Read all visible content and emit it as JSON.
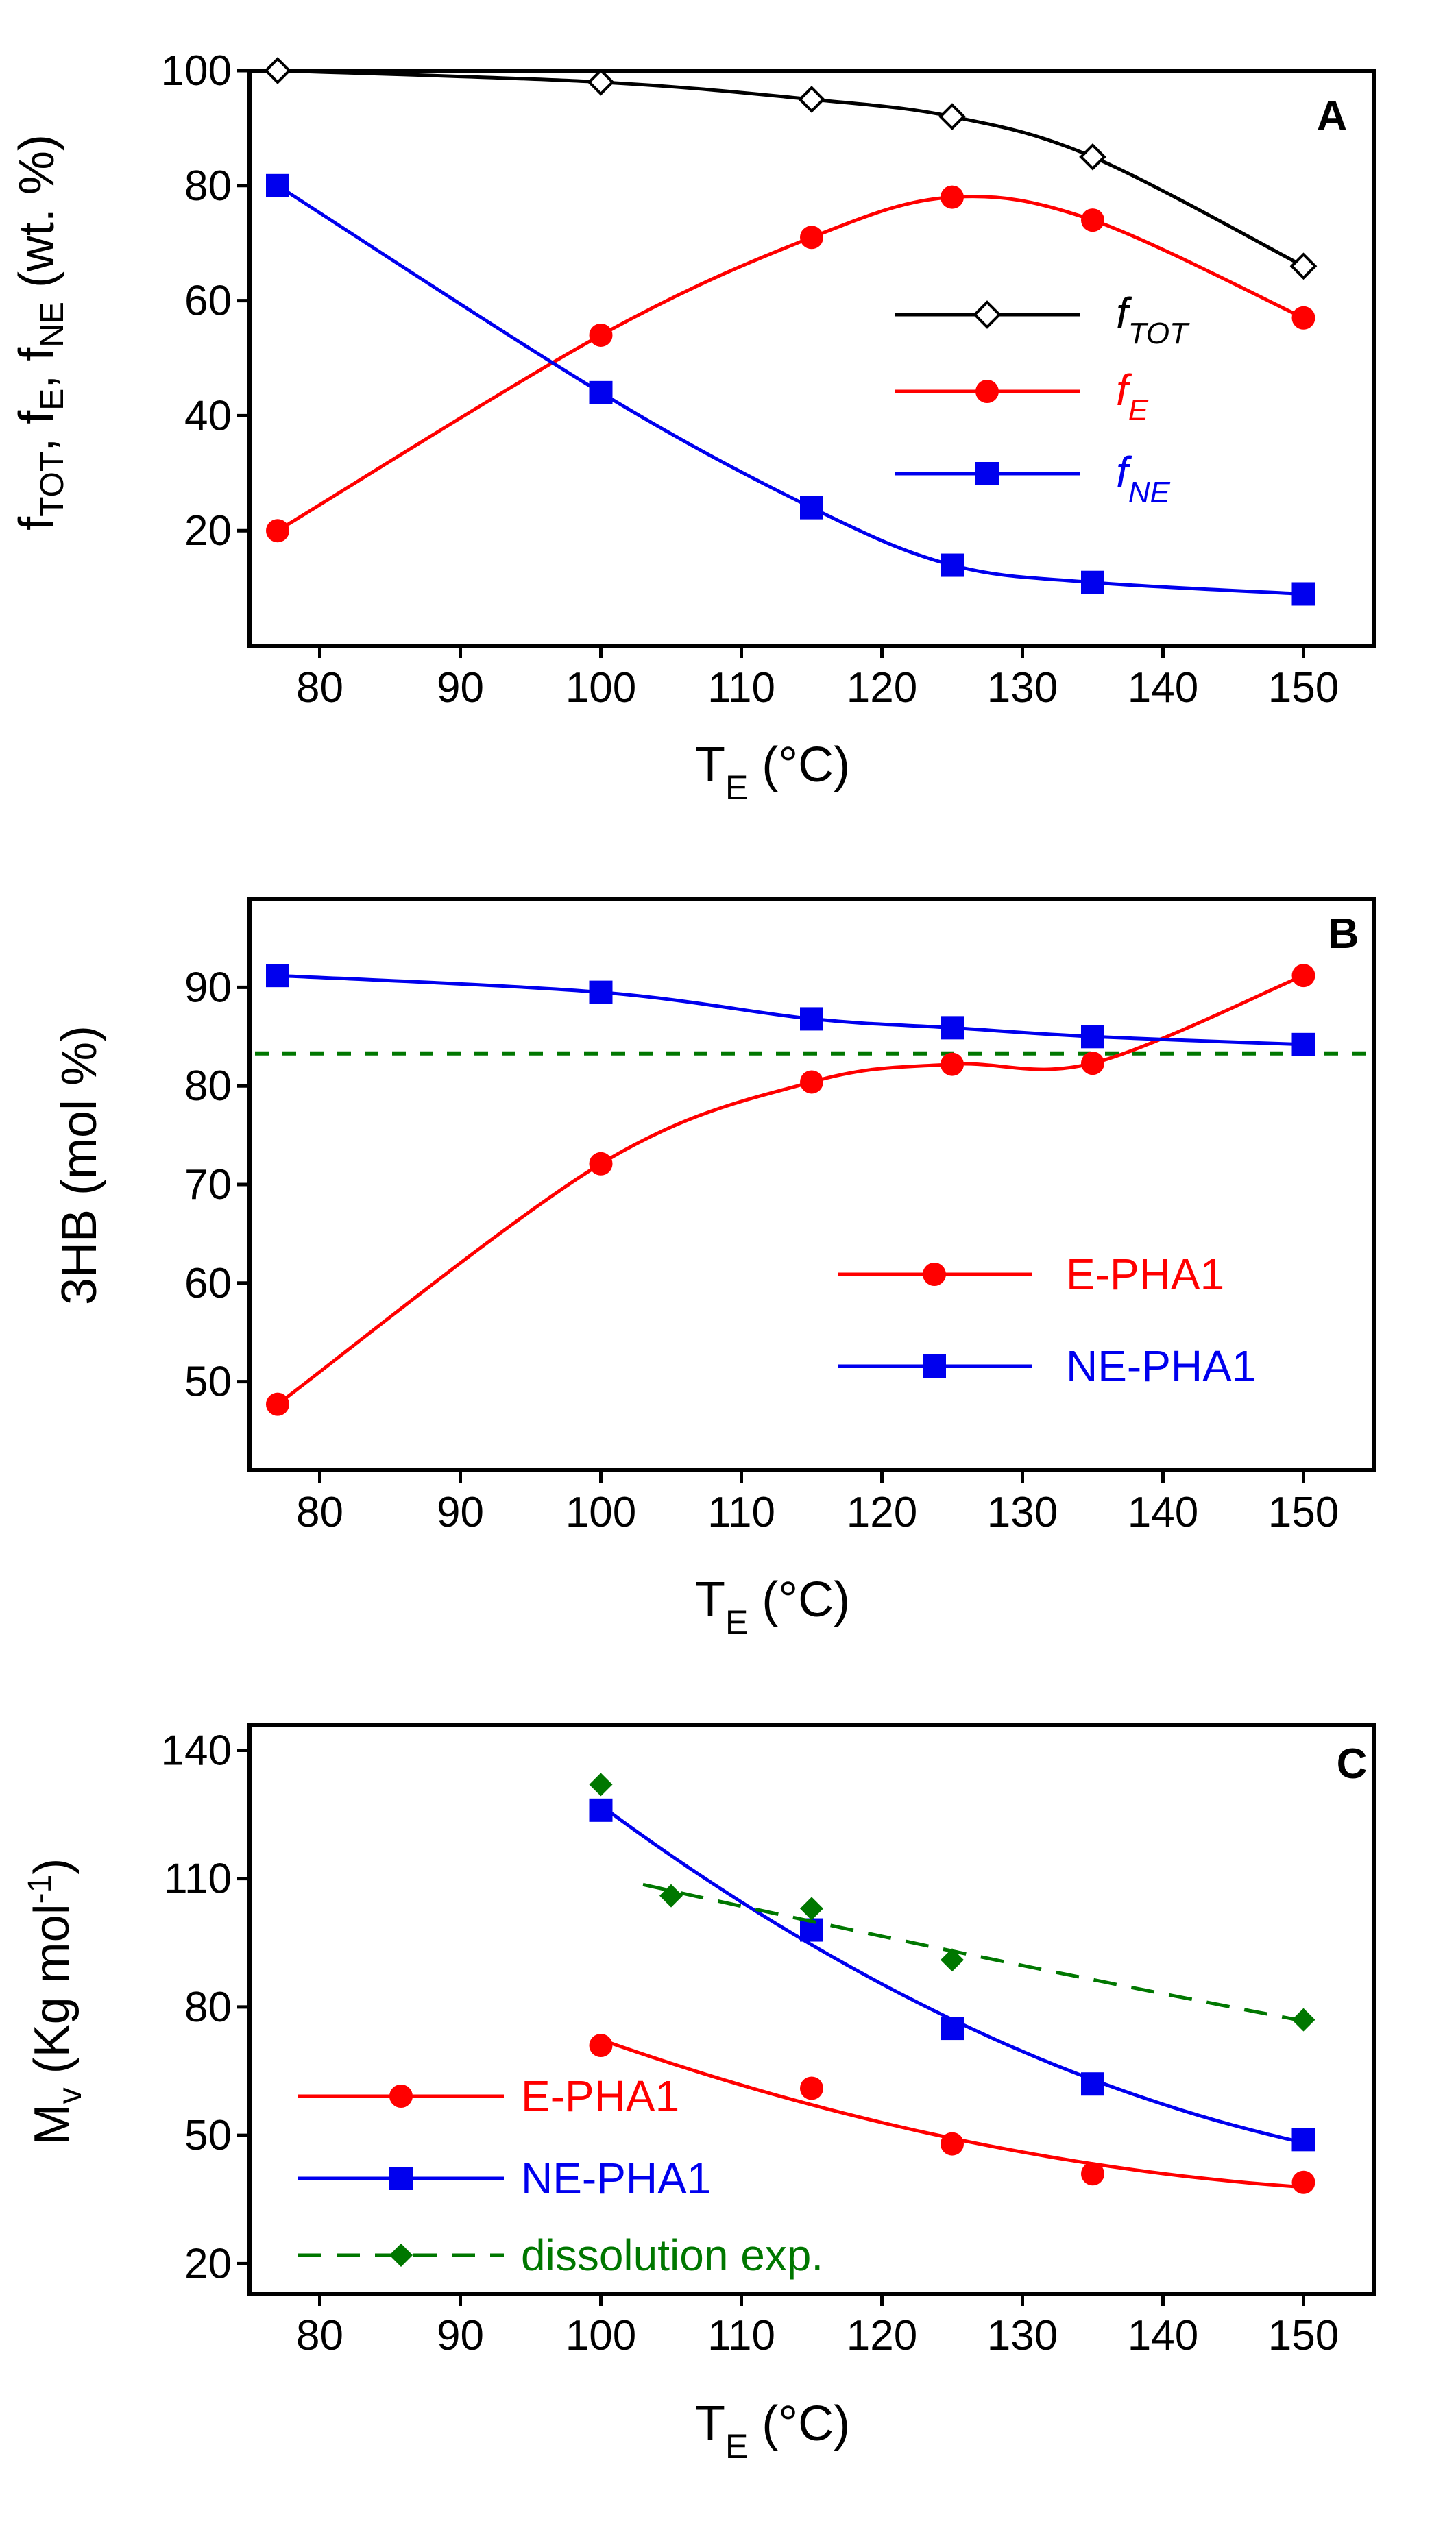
{
  "colors": {
    "tot": "#000000",
    "e": "#ff0000",
    "ne": "#0000ee",
    "dissolution": "#007700"
  },
  "chart_data": [
    {
      "panel": "A",
      "type": "line",
      "xlabel": "T_E (°C)",
      "ylabel": "f_TOT, f_E, f_NE (wt. %)",
      "xlim": [
        75,
        155
      ],
      "ylim": [
        0,
        100
      ],
      "xticks": [
        80,
        90,
        100,
        110,
        120,
        130,
        140,
        150
      ],
      "yticks": [
        20,
        40,
        60,
        80,
        100
      ],
      "legend_position": "center-right",
      "series": [
        {
          "name": "f_TOT",
          "label_main": "f",
          "label_sub": "TOT",
          "marker": "open-diamond",
          "color_key": "tot",
          "x": [
            77,
            100,
            115,
            125,
            135,
            150
          ],
          "values": [
            100,
            98,
            95,
            92,
            85,
            66
          ]
        },
        {
          "name": "f_E",
          "label_main": "f",
          "label_sub": "E",
          "marker": "circle",
          "color_key": "e",
          "x": [
            77,
            100,
            115,
            125,
            135,
            150
          ],
          "values": [
            20,
            54,
            71,
            78,
            74,
            57
          ]
        },
        {
          "name": "f_NE",
          "label_main": "f",
          "label_sub": "NE",
          "marker": "square",
          "color_key": "ne",
          "x": [
            77,
            100,
            115,
            125,
            135,
            150
          ],
          "values": [
            80,
            44,
            24,
            14,
            11,
            9
          ]
        }
      ]
    },
    {
      "panel": "B",
      "type": "line",
      "xlabel": "T_E (°C)",
      "ylabel": "3HB (mol %)",
      "xlim": [
        75,
        155
      ],
      "ylim": [
        41,
        99
      ],
      "xticks": [
        80,
        90,
        100,
        110,
        120,
        130,
        140,
        150
      ],
      "yticks": [
        50,
        60,
        70,
        80,
        90
      ],
      "legend_position": "lower-right",
      "reference_line": {
        "y": 83.3,
        "style": "dashed"
      },
      "series": [
        {
          "name": "E-PHA1",
          "marker": "circle",
          "color_key": "e",
          "x": [
            77,
            100,
            115,
            125,
            135,
            150
          ],
          "values": [
            47.7,
            72.1,
            80.4,
            82.2,
            82.3,
            91.2
          ]
        },
        {
          "name": "NE-PHA1",
          "marker": "square",
          "color_key": "ne",
          "x": [
            77,
            100,
            115,
            125,
            135,
            150
          ],
          "values": [
            91.2,
            89.5,
            86.8,
            85.9,
            85.0,
            84.2
          ]
        }
      ]
    },
    {
      "panel": "C",
      "type": "scatter",
      "xlabel": "T_E (°C)",
      "ylabel": "M_v (Kg mol^-1)",
      "xlim": [
        75,
        155
      ],
      "ylim": [
        13,
        146
      ],
      "xticks": [
        80,
        90,
        100,
        110,
        120,
        130,
        140,
        150
      ],
      "yticks": [
        20,
        50,
        80,
        110,
        140
      ],
      "legend_position": "lower-left",
      "series": [
        {
          "name": "E-PHA1",
          "marker": "circle",
          "color_key": "e",
          "x": [
            100,
            115,
            125,
            135,
            150
          ],
          "values": [
            71,
            61,
            48,
            41,
            39
          ]
        },
        {
          "name": "NE-PHA1",
          "marker": "square",
          "color_key": "ne",
          "x": [
            100,
            115,
            125,
            135,
            150
          ],
          "values": [
            126,
            98,
            75,
            62,
            49
          ]
        },
        {
          "name": "dissolution exp.",
          "marker": "diamond",
          "color_key": "dissolution",
          "dashed": true,
          "x": [
            100,
            105,
            115,
            125,
            150
          ],
          "values": [
            132,
            106,
            103,
            91,
            77
          ]
        }
      ]
    }
  ]
}
